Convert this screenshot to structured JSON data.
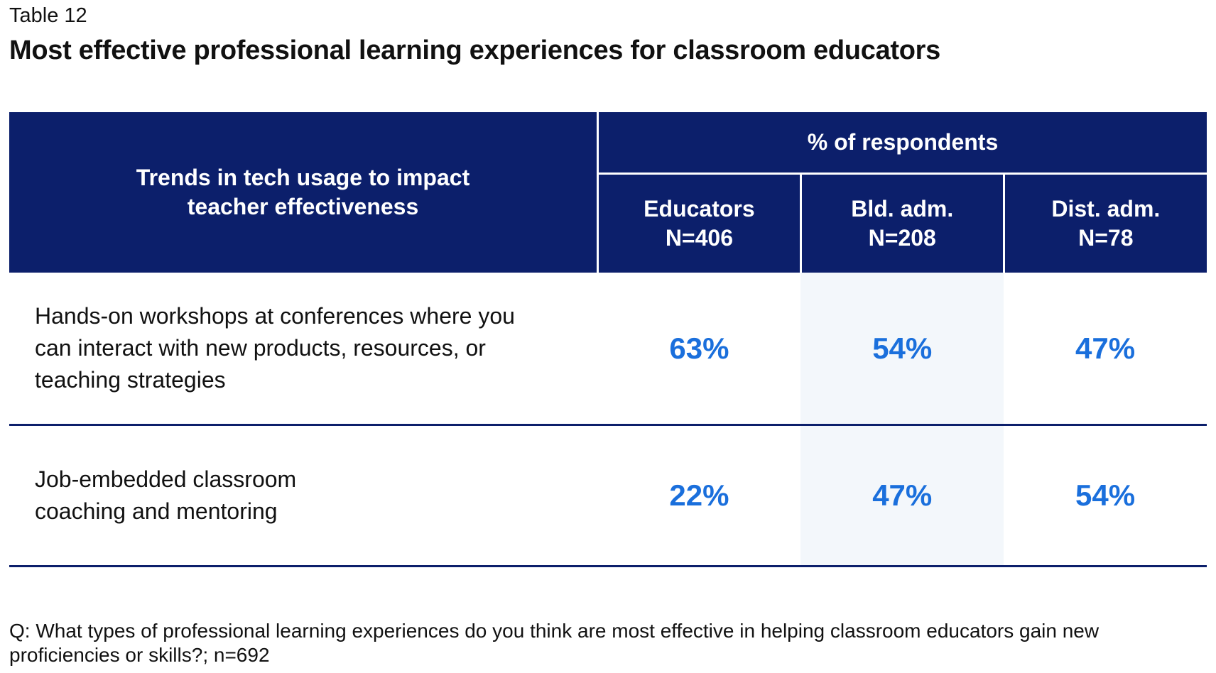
{
  "header": {
    "label": "Table 12",
    "title": "Most effective professional learning experiences for classroom educators"
  },
  "table": {
    "row_header": "Trends in tech usage to impact teacher effectiveness",
    "group_header": "% of respondents",
    "columns": [
      {
        "name": "Educators",
        "n": "N=406"
      },
      {
        "name": "Bld. adm.",
        "n": "N=208"
      },
      {
        "name": "Dist. adm.",
        "n": "N=78"
      }
    ],
    "rows": [
      {
        "label": "Hands-on workshops at conferences where you can interact with new products, resources, or teaching strategies",
        "values": [
          "63%",
          "54%",
          "47%"
        ]
      },
      {
        "label": "Job-embedded classroom coaching and mentoring",
        "values": [
          "22%",
          "47%",
          "54%"
        ]
      }
    ]
  },
  "footnote": "Q: What types of professional learning experiences do you think are most effective in helping classroom educators gain new proficiencies or skills?; n=692"
}
